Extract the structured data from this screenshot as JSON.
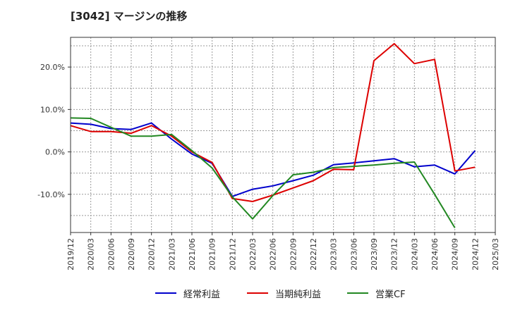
{
  "chart_data": {
    "type": "line",
    "title": "[3042]  マージンの推移",
    "xlabel": "",
    "ylabel": "",
    "x": [
      "2019/12",
      "2020/03",
      "2020/06",
      "2020/09",
      "2020/12",
      "2021/03",
      "2021/06",
      "2021/09",
      "2021/12",
      "2022/03",
      "2022/06",
      "2022/09",
      "2022/12",
      "2023/03",
      "2023/06",
      "2023/09",
      "2023/12",
      "2024/03",
      "2024/06",
      "2024/09",
      "2024/12",
      "2025/03"
    ],
    "ylim": [
      -19,
      27
    ],
    "yticks": [
      -10,
      0,
      10,
      20
    ],
    "ytick_labels": [
      "-10.0%",
      "0.0%",
      "10.0%",
      "20.0%"
    ],
    "grid": true,
    "legend_position": "bottom",
    "series": [
      {
        "name": "経常利益",
        "color": "#0000cc",
        "values": [
          6.8,
          6.5,
          5.5,
          5.3,
          6.8,
          3.0,
          -0.5,
          -2.7,
          -10.5,
          -8.8,
          -8.0,
          -6.8,
          -5.5,
          -3.0,
          -2.6,
          -2.1,
          -1.6,
          -3.5,
          -3.1,
          -5.2,
          0.3,
          null
        ]
      },
      {
        "name": "当期純利益",
        "color": "#dd0000",
        "values": [
          6.2,
          4.8,
          4.8,
          4.4,
          6.2,
          3.7,
          0.0,
          -2.5,
          -11.0,
          -11.7,
          -10.2,
          -8.5,
          -6.8,
          -4.1,
          -4.2,
          21.5,
          25.5,
          20.8,
          21.8,
          -4.5,
          -3.6,
          null
        ]
      },
      {
        "name": "営業CF",
        "color": "#228822",
        "values": [
          8.0,
          7.9,
          5.8,
          3.7,
          3.7,
          4.1,
          0.3,
          -3.8,
          -10.6,
          -15.8,
          -10.3,
          -5.4,
          -4.8,
          -3.7,
          -3.4,
          -3.1,
          -2.7,
          -2.4,
          -10.0,
          -17.9,
          null,
          null
        ]
      }
    ]
  }
}
